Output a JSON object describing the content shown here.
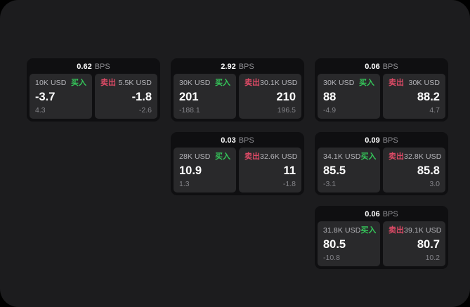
{
  "page": {
    "background": "#1c1c1e",
    "outside_background": "#000000"
  },
  "labels": {
    "bps_unit": "BPS",
    "buy": "买入",
    "sell": "卖出"
  },
  "colors": {
    "buy_green": "#35c75a",
    "sell_red": "#dd4a66",
    "card_bg": "#0f0f11",
    "panel_bg": "#29292b",
    "price_text": "#ffffff",
    "muted_text": "#85858a",
    "label_text": "#b5b5ba"
  },
  "cards": [
    {
      "spread_bps": "0.62",
      "buy": {
        "amount": "10K USD",
        "price": "-3.7",
        "sub_value": "4.3"
      },
      "sell": {
        "amount": "5.5K USD",
        "price": "-1.8",
        "sub_value": "-2.6"
      }
    },
    {
      "spread_bps": "2.92",
      "buy": {
        "amount": "30K USD",
        "price": "201",
        "sub_value": "-188.1"
      },
      "sell": {
        "amount": "30.1K USD",
        "price": "210",
        "sub_value": "196.5"
      }
    },
    {
      "spread_bps": "0.06",
      "buy": {
        "amount": "30K USD",
        "price": "88",
        "sub_value": "-4.9"
      },
      "sell": {
        "amount": "30K USD",
        "price": "88.2",
        "sub_value": "4.7"
      }
    },
    {
      "spread_bps": "0.03",
      "buy": {
        "amount": "28K USD",
        "price": "10.9",
        "sub_value": "1.3"
      },
      "sell": {
        "amount": "32.6K USD",
        "price": "11",
        "sub_value": "-1.8"
      }
    },
    {
      "spread_bps": "0.09",
      "buy": {
        "amount": "34.1K USD",
        "price": "85.5",
        "sub_value": "-3.1"
      },
      "sell": {
        "amount": "32.8K USD",
        "price": "85.8",
        "sub_value": "3.0"
      }
    },
    {
      "spread_bps": "0.06",
      "buy": {
        "amount": "31.8K USD",
        "price": "80.5",
        "sub_value": "-10.8"
      },
      "sell": {
        "amount": "39.1K USD",
        "price": "80.7",
        "sub_value": "10.2"
      }
    }
  ]
}
